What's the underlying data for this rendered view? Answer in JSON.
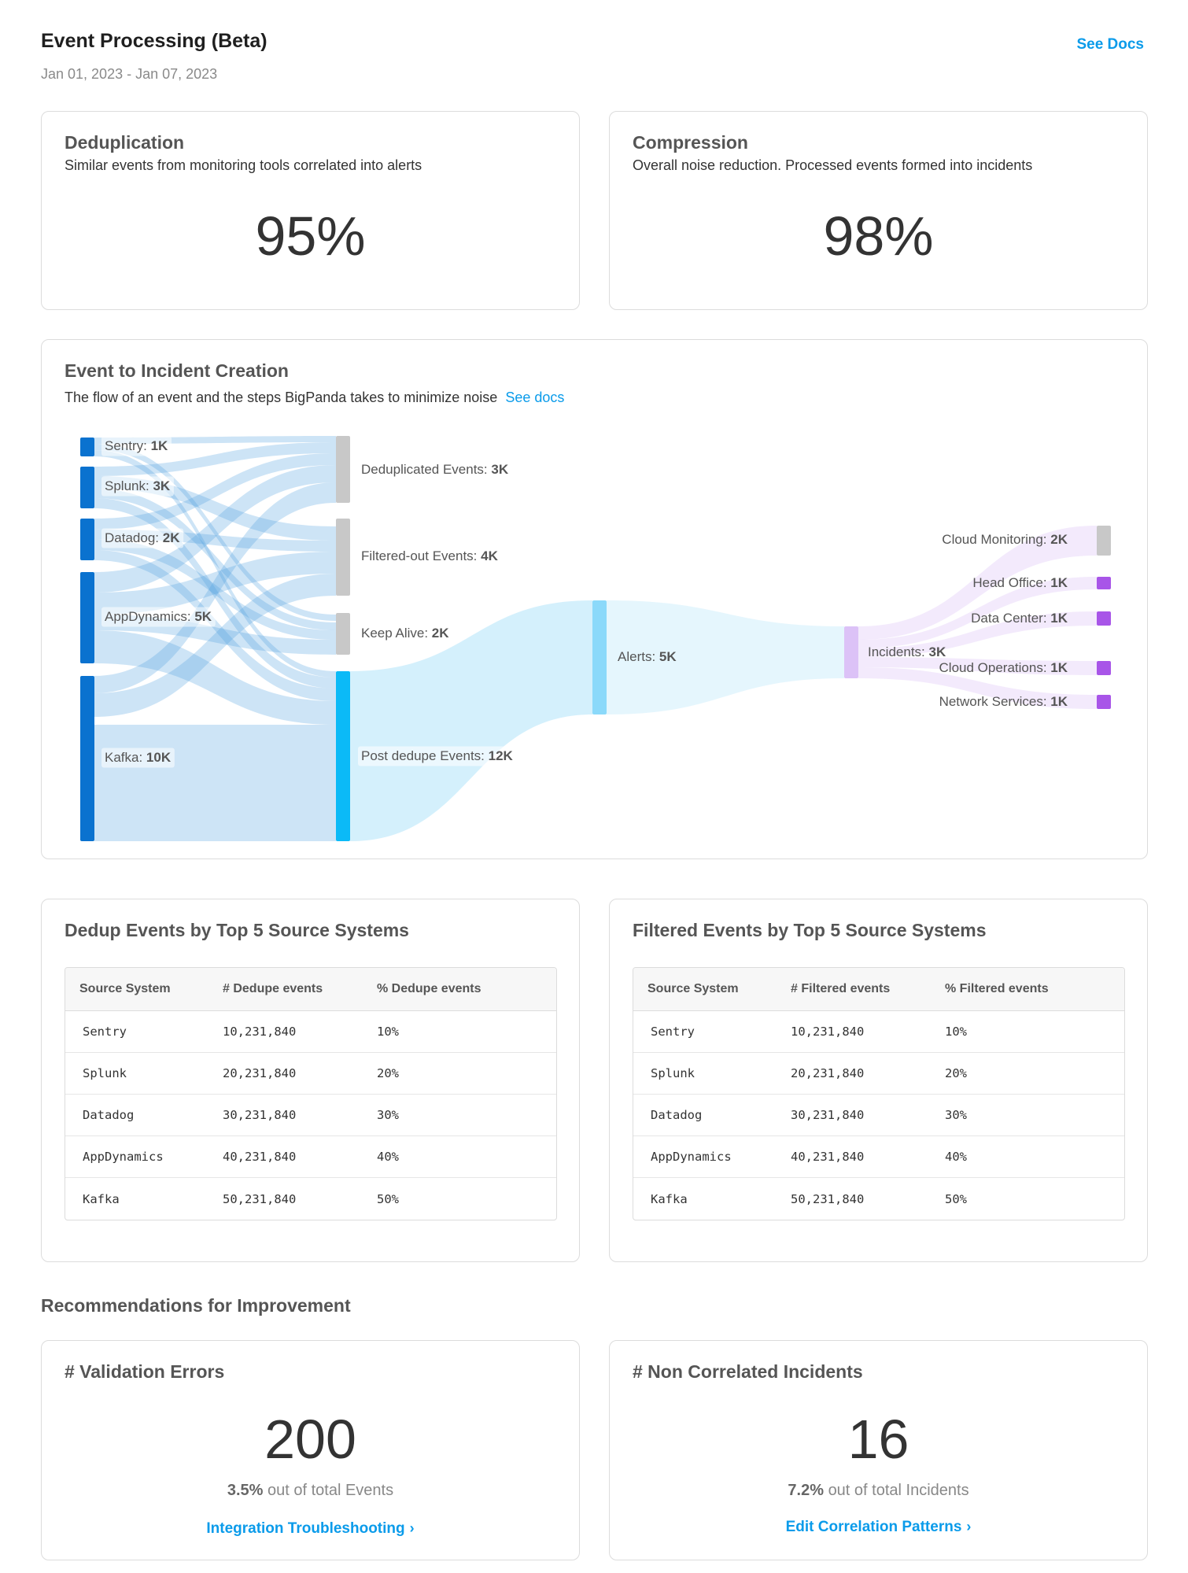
{
  "header": {
    "title": "Event Processing (Beta)",
    "date_range": "Jan 01, 2023 - Jan 07, 2023",
    "see_docs": "See Docs"
  },
  "kpis": {
    "dedup": {
      "title": "Deduplication",
      "subtitle": "Similar events from monitoring tools correlated into alerts",
      "value": "95%"
    },
    "compression": {
      "title": "Compression",
      "subtitle": "Overall noise reduction. Processed events formed into incidents",
      "value": "98%"
    }
  },
  "flow": {
    "title": "Event to Incident Creation",
    "subtitle": "The flow of an event and the steps BigPanda takes to minimize noise",
    "docs_link": "See docs"
  },
  "chart_data": {
    "type": "sankey",
    "nodes": [
      {
        "id": "sentry",
        "label": "Sentry:",
        "value": "1K",
        "column": 0,
        "color": "#0a72cf"
      },
      {
        "id": "splunk",
        "label": "Splunk:",
        "value": "3K",
        "column": 0,
        "color": "#0a72cf"
      },
      {
        "id": "datadog",
        "label": "Datadog:",
        "value": "2K",
        "column": 0,
        "color": "#0a72cf"
      },
      {
        "id": "appdynamics",
        "label": "AppDynamics:",
        "value": "5K",
        "column": 0,
        "color": "#0a72cf"
      },
      {
        "id": "kafka",
        "label": "Kafka:",
        "value": "10K",
        "column": 0,
        "color": "#0a72cf"
      },
      {
        "id": "dedup",
        "label": "Deduplicated Events:",
        "value": "3K",
        "column": 1,
        "color": "#c8c8c8"
      },
      {
        "id": "filtered",
        "label": "Filtered-out Events:",
        "value": "4K",
        "column": 1,
        "color": "#c8c8c8"
      },
      {
        "id": "keepalive",
        "label": "Keep Alive:",
        "value": "2K",
        "column": 1,
        "color": "#c8c8c8"
      },
      {
        "id": "postdedupe",
        "label": "Post dedupe Events:",
        "value": "12K",
        "column": 1,
        "color": "#0bbaf7"
      },
      {
        "id": "alerts",
        "label": "Alerts:",
        "value": "5K",
        "column": 2,
        "color": "#8bd9fa"
      },
      {
        "id": "incidents",
        "label": "Incidents:",
        "value": "3K",
        "column": 3,
        "color": "#dcc2f7"
      },
      {
        "id": "cloudmon",
        "label": "Cloud Monitoring:",
        "value": "2K",
        "column": 4,
        "color": "#c8c8c8"
      },
      {
        "id": "headoffice",
        "label": "Head Office:",
        "value": "1K",
        "column": 4,
        "color": "#a855e8"
      },
      {
        "id": "datacenter",
        "label": "Data Center:",
        "value": "1K",
        "column": 4,
        "color": "#a855e8"
      },
      {
        "id": "cloudops",
        "label": "Cloud Operations:",
        "value": "1K",
        "column": 4,
        "color": "#a855e8"
      },
      {
        "id": "netservices",
        "label": "Network Services:",
        "value": "1K",
        "column": 4,
        "color": "#a855e8"
      }
    ]
  },
  "dedup_table": {
    "title": "Dedup Events by Top 5 Source Systems",
    "headers": [
      "Source System",
      "# Dedupe events",
      "% Dedupe events"
    ],
    "rows": [
      [
        "Sentry",
        "10,231,840",
        "10%"
      ],
      [
        "Splunk",
        "20,231,840",
        "20%"
      ],
      [
        "Datadog",
        "30,231,840",
        "30%"
      ],
      [
        "AppDynamics",
        "40,231,840",
        "40%"
      ],
      [
        "Kafka",
        "50,231,840",
        "50%"
      ]
    ]
  },
  "filtered_table": {
    "title": "Filtered Events by Top 5 Source Systems",
    "headers": [
      "Source System",
      "# Filtered events",
      "% Filtered events"
    ],
    "rows": [
      [
        "Sentry",
        "10,231,840",
        "10%"
      ],
      [
        "Splunk",
        "20,231,840",
        "20%"
      ],
      [
        "Datadog",
        "30,231,840",
        "30%"
      ],
      [
        "AppDynamics",
        "40,231,840",
        "40%"
      ],
      [
        "Kafka",
        "50,231,840",
        "50%"
      ]
    ]
  },
  "recommendations": {
    "title": "Recommendations for Improvement",
    "validation": {
      "title": "# Validation Errors",
      "value": "200",
      "pct": "3.5%",
      "pct_suffix": "out of total Events",
      "link": "Integration Troubleshooting"
    },
    "noncorrelated": {
      "title": "# Non Correlated Incidents",
      "value": "16",
      "pct": "7.2%",
      "pct_suffix": "out of total Incidents",
      "link": "Edit Correlation Patterns"
    }
  }
}
